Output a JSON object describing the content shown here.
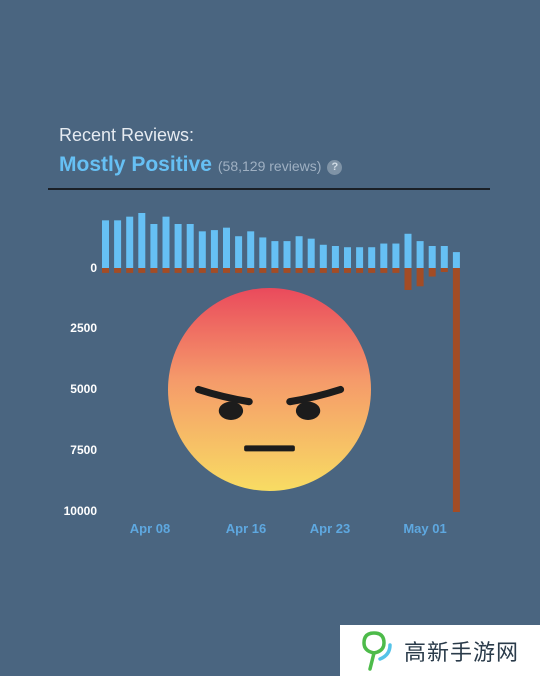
{
  "header": {
    "title": "Recent Reviews:",
    "rating": "Mostly Positive",
    "count": "(58,129 reviews)",
    "help_icon": "?"
  },
  "colors": {
    "positive": "#66c0f4",
    "negative": "#a34c25",
    "background": "#4a6580"
  },
  "chart_data": {
    "type": "bar",
    "title": "",
    "x_tick_labels": [
      "Apr 08",
      "Apr 16",
      "Apr 23",
      "May 01"
    ],
    "y_tick_labels": [
      "0",
      "2500",
      "5000",
      "7500",
      "10000"
    ],
    "ylim": [
      0,
      10000
    ],
    "grid": false,
    "series": [
      {
        "name": "positive",
        "values": [
          1950,
          1950,
          2100,
          2250,
          1800,
          2100,
          1800,
          1800,
          1500,
          1550,
          1650,
          1300,
          1500,
          1250,
          1100,
          1100,
          1300,
          1200,
          950,
          900,
          850,
          850,
          850,
          1000,
          1000,
          1400,
          1100,
          900,
          900,
          650
        ]
      },
      {
        "name": "negative",
        "values": [
          200,
          200,
          200,
          200,
          200,
          200,
          200,
          200,
          200,
          200,
          200,
          200,
          200,
          200,
          200,
          200,
          200,
          200,
          200,
          200,
          200,
          200,
          200,
          200,
          200,
          900,
          750,
          350,
          150,
          10000
        ]
      }
    ],
    "negative_scale_note": "negative reviews drawn downward from zero line"
  },
  "watermark": {
    "text": "高新手游网",
    "logo_icon": "leaf-logo-icon"
  }
}
